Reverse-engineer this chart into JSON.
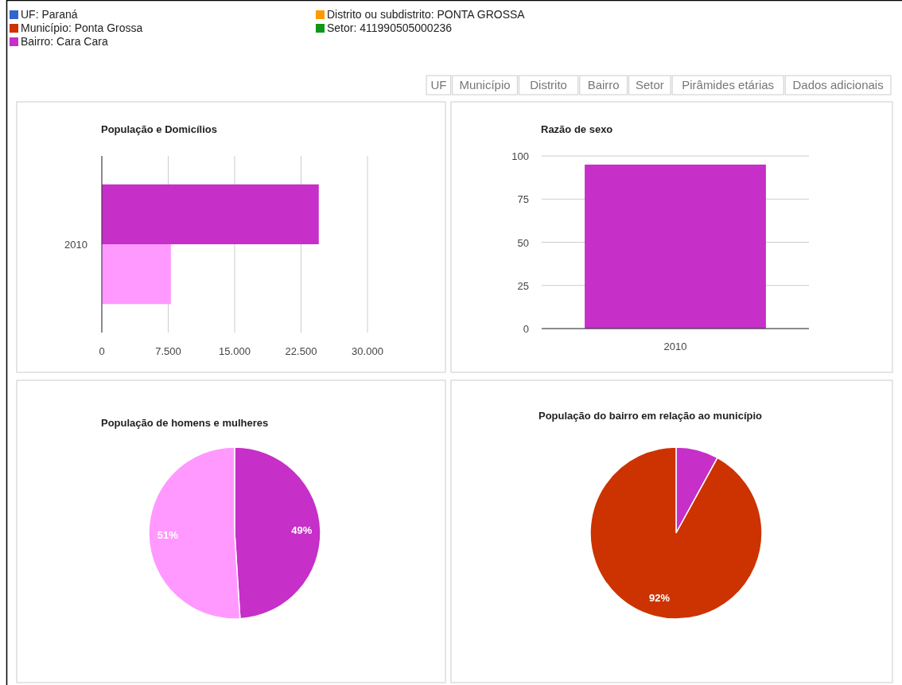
{
  "chart_data": [
    {
      "type": "other",
      "colors": [
        "#3366cc",
        "#cc3300",
        "#c62fc8",
        "#ff9900",
        "#109618"
      ],
      "annotations": [
        "UF: Paraná",
        "Município: Ponta Grossa",
        "Bairro: Cara Cara",
        "Distrito ou subdistrito: PONTA GROSSA",
        "Setor: 411990505000236",
        "UF",
        "Município",
        "Distrito",
        "Bairro",
        "Setor",
        "Pirâmides etárias",
        "Dados adicionais"
      ]
    },
    {
      "type": "bar",
      "title": "População e Domicílios",
      "orientation": "horizontal",
      "categories": [
        "2010"
      ],
      "series": [
        {
          "color": "#c62fc8",
          "values": [
            24500
          ]
        },
        {
          "color": "#ff99ff",
          "values": [
            7800
          ]
        }
      ],
      "xlim": [
        0,
        30000
      ],
      "xticks": [
        0,
        {
          "value": 7500,
          "label": "7.500"
        },
        {
          "value": 15000,
          "label": "15.000"
        },
        {
          "value": 22500,
          "label": "22.500"
        },
        {
          "value": 30000,
          "label": "30.000"
        }
      ],
      "grid": "x"
    },
    {
      "type": "bar",
      "title": "Razão de sexo",
      "categories": [
        "2010"
      ],
      "values": [
        95
      ],
      "color": "#c62fc8",
      "ylim": [
        0,
        100
      ],
      "yticks": [
        0,
        25,
        50,
        75,
        100
      ],
      "grid": "y"
    },
    {
      "type": "pie",
      "title": "População de homens e mulheres",
      "categories": [
        null,
        null
      ],
      "values": [
        49,
        51
      ],
      "colors": [
        "#c62fc8",
        "#ff99ff"
      ],
      "value_labels": [
        "49%",
        "51%"
      ]
    },
    {
      "type": "pie",
      "title": "População do bairro em relação ao município",
      "categories": [
        null,
        null
      ],
      "values": [
        8,
        92
      ],
      "colors": [
        "#c62fc8",
        "#cc3300"
      ],
      "value_labels": [
        null,
        "92%"
      ]
    }
  ]
}
